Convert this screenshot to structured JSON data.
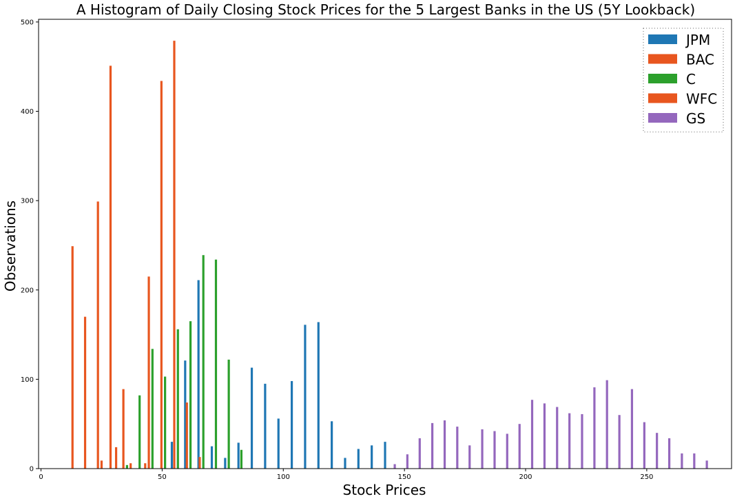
{
  "chart_data": {
    "type": "bar",
    "title": "A Histogram of Daily Closing Stock Prices for the 5 Largest Banks in the US (5Y Lookback)",
    "xlabel": "Stock Prices",
    "ylabel": "Observations",
    "xlim": [
      -1,
      285
    ],
    "ylim": [
      0,
      503
    ],
    "xticks": [
      0,
      50,
      100,
      150,
      200,
      250
    ],
    "yticks": [
      0,
      100,
      200,
      300,
      400,
      500
    ],
    "grid": false,
    "legend_position": "top-right",
    "series": [
      {
        "name": "JPM",
        "color": "#1f77b4",
        "x": [
          54,
          59.5,
          65,
          70.5,
          76,
          81.5,
          87,
          92.5,
          98,
          103.5,
          109,
          114.5,
          120,
          125.5,
          131,
          136.5,
          142
        ],
        "values": [
          30,
          121,
          211,
          25,
          12,
          29,
          113,
          95,
          56,
          98,
          161,
          164,
          53,
          12,
          22,
          26,
          30
        ]
      },
      {
        "name": "BAC",
        "color": "#e8561f",
        "x": [
          13,
          18.2,
          23.5,
          28.7,
          34,
          39.2,
          44.5,
          49.7,
          55,
          60.2,
          65.5
        ],
        "values": [
          249,
          170,
          299,
          451,
          89,
          0,
          215,
          434,
          479,
          74,
          13
        ]
      },
      {
        "name": "C",
        "color": "#2ca02c",
        "x": [
          35.5,
          40.7,
          46,
          51.2,
          56.5,
          61.7,
          67,
          72.2,
          77.5,
          82.7
        ],
        "values": [
          4,
          82,
          134,
          103,
          156,
          165,
          239,
          234,
          122,
          21
        ]
      },
      {
        "name": "WFC",
        "color": "#e8561f",
        "x": [
          25,
          31,
          37,
          43
        ],
        "values": [
          9,
          24,
          6,
          6
        ]
      },
      {
        "name": "GS",
        "color": "#9467bd",
        "x": [
          146,
          151.2,
          156.3,
          161.5,
          166.6,
          171.8,
          176.9,
          182.1,
          187.2,
          192.4,
          197.5,
          202.7,
          207.8,
          213,
          218.1,
          223.3,
          228.4,
          233.6,
          238.7,
          243.9,
          249,
          254.2,
          259.3,
          264.5,
          269.6,
          274.8
        ],
        "values": [
          5,
          16,
          34,
          51,
          54,
          47,
          26,
          44,
          42,
          39,
          50,
          77,
          73,
          69,
          62,
          61,
          91,
          99,
          60,
          89,
          52,
          40,
          34,
          17,
          17,
          9
        ]
      }
    ]
  }
}
